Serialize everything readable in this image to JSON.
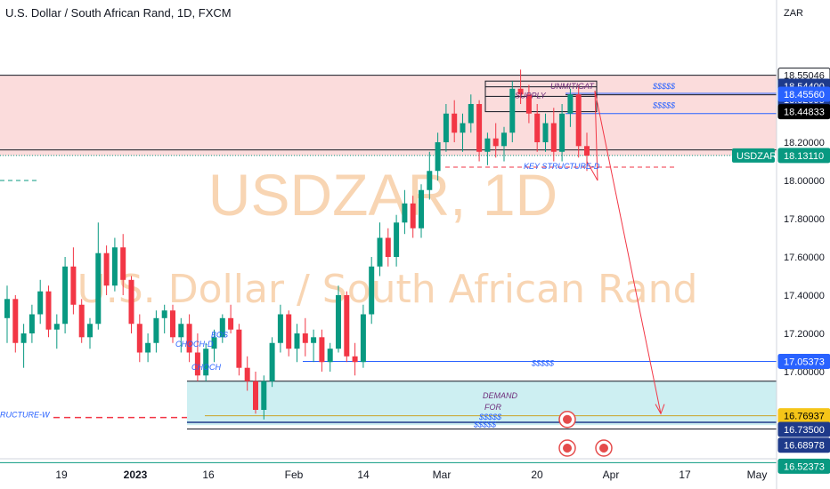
{
  "header": {
    "title": "U.S. Dollar / South African Rand, 1D, FXCM"
  },
  "watermark": {
    "symbol": "USDZAR, 1D",
    "name": "U.S. Dollar / South African Rand"
  },
  "colors": {
    "up": "#089981",
    "down": "#f23645",
    "supply_zone": "#fbdcdc",
    "demand_zone": "#cdeff2",
    "level_line": "#2962ff"
  },
  "chart_data": {
    "type": "candlestick",
    "title": "U.S. Dollar / South African Rand, 1D, FXCM",
    "currency": "ZAR",
    "ylim": [
      16.5,
      18.6
    ],
    "y_ticks": [
      18.2,
      18.0,
      17.8,
      17.6,
      17.4,
      17.2,
      17.0
    ],
    "x_ticks": [
      "19",
      "2023",
      "16",
      "Feb",
      "14",
      "Mar",
      "20",
      "Apr",
      "17",
      "May"
    ],
    "price_labels": [
      {
        "text": "18.55046"
      },
      {
        "text": "18.54400"
      },
      {
        "text": "18.52095"
      },
      {
        "text": "18.45560"
      },
      {
        "text": "18.44833"
      },
      {
        "text": "18.13110"
      },
      {
        "text": "17.05373"
      },
      {
        "text": "16.76937"
      },
      {
        "text": "16.73500"
      },
      {
        "text": "16.68978"
      },
      {
        "text": "16.52373"
      }
    ],
    "last_price": {
      "symbol": "USDZAR",
      "value": "18.13110"
    },
    "annotations": [
      "SUPPLY",
      "UNMITIGAT",
      "$$$$$",
      "$$$$$",
      "KEY STRUCTURE-D",
      "$$$$$",
      "DEMAND",
      "FOR",
      "$$$$$",
      "$$$$$",
      "CHOCH-D",
      "BOS",
      "CHOCH",
      "RUCTURE-W"
    ],
    "candles": [
      [
        17.28,
        17.45,
        17.15,
        17.38
      ],
      [
        17.38,
        17.4,
        17.1,
        17.15
      ],
      [
        17.15,
        17.25,
        17.02,
        17.2
      ],
      [
        17.2,
        17.35,
        17.15,
        17.3
      ],
      [
        17.3,
        17.48,
        17.25,
        17.42
      ],
      [
        17.42,
        17.45,
        17.18,
        17.22
      ],
      [
        17.22,
        17.3,
        17.12,
        17.25
      ],
      [
        17.25,
        17.6,
        17.2,
        17.55
      ],
      [
        17.55,
        17.65,
        17.3,
        17.35
      ],
      [
        17.35,
        17.38,
        17.15,
        17.18
      ],
      [
        17.18,
        17.28,
        17.12,
        17.25
      ],
      [
        17.25,
        17.78,
        17.22,
        17.62
      ],
      [
        17.62,
        17.66,
        17.4,
        17.45
      ],
      [
        17.45,
        17.7,
        17.42,
        17.65
      ],
      [
        17.65,
        17.72,
        17.4,
        17.48
      ],
      [
        17.48,
        17.5,
        17.2,
        17.25
      ],
      [
        17.25,
        17.3,
        17.05,
        17.1
      ],
      [
        17.1,
        17.2,
        17.05,
        17.15
      ],
      [
        17.15,
        17.32,
        17.1,
        17.28
      ],
      [
        17.28,
        17.35,
        17.2,
        17.32
      ],
      [
        17.32,
        17.35,
        17.15,
        17.18
      ],
      [
        17.18,
        17.28,
        17.1,
        17.25
      ],
      [
        17.25,
        17.3,
        17.05,
        17.1
      ],
      [
        17.1,
        17.2,
        16.95,
        16.98
      ],
      [
        16.98,
        17.15,
        16.95,
        17.12
      ],
      [
        17.12,
        17.22,
        17.05,
        17.18
      ],
      [
        17.18,
        17.3,
        17.15,
        17.28
      ],
      [
        17.28,
        17.35,
        17.2,
        17.22
      ],
      [
        17.22,
        17.25,
        16.98,
        17.02
      ],
      [
        17.02,
        17.08,
        16.9,
        16.95
      ],
      [
        16.95,
        17.0,
        16.78,
        16.8
      ],
      [
        16.8,
        16.98,
        16.75,
        16.95
      ],
      [
        16.95,
        17.18,
        16.92,
        17.15
      ],
      [
        17.15,
        17.35,
        17.1,
        17.3
      ],
      [
        17.3,
        17.32,
        17.08,
        17.12
      ],
      [
        17.12,
        17.25,
        17.05,
        17.2
      ],
      [
        17.2,
        17.28,
        17.08,
        17.15
      ],
      [
        17.15,
        17.22,
        17.05,
        17.18
      ],
      [
        17.18,
        17.22,
        17.0,
        17.05
      ],
      [
        17.05,
        17.15,
        17.0,
        17.12
      ],
      [
        17.12,
        17.45,
        17.1,
        17.4
      ],
      [
        17.4,
        17.42,
        17.05,
        17.08
      ],
      [
        17.08,
        17.15,
        16.98,
        17.05
      ],
      [
        17.05,
        17.35,
        17.02,
        17.3
      ],
      [
        17.3,
        17.6,
        17.25,
        17.55
      ],
      [
        17.55,
        17.78,
        17.5,
        17.7
      ],
      [
        17.7,
        17.75,
        17.55,
        17.6
      ],
      [
        17.6,
        17.82,
        17.55,
        17.78
      ],
      [
        17.78,
        17.95,
        17.72,
        17.88
      ],
      [
        17.88,
        17.92,
        17.7,
        17.75
      ],
      [
        17.75,
        17.98,
        17.7,
        17.95
      ],
      [
        17.95,
        18.15,
        17.9,
        18.05
      ],
      [
        18.05,
        18.25,
        18.0,
        18.2
      ],
      [
        18.2,
        18.4,
        18.15,
        18.35
      ],
      [
        18.35,
        18.42,
        18.2,
        18.25
      ],
      [
        18.25,
        18.35,
        18.15,
        18.3
      ],
      [
        18.3,
        18.45,
        18.25,
        18.4
      ],
      [
        18.4,
        18.42,
        18.1,
        18.15
      ],
      [
        18.15,
        18.25,
        18.08,
        18.22
      ],
      [
        18.22,
        18.3,
        18.12,
        18.18
      ],
      [
        18.18,
        18.28,
        18.1,
        18.25
      ],
      [
        18.25,
        18.52,
        18.2,
        18.48
      ],
      [
        18.48,
        18.58,
        18.4,
        18.45
      ],
      [
        18.45,
        18.5,
        18.3,
        18.35
      ],
      [
        18.35,
        18.4,
        18.15,
        18.2
      ],
      [
        18.2,
        18.35,
        18.15,
        18.3
      ],
      [
        18.3,
        18.38,
        18.1,
        18.15
      ],
      [
        18.15,
        18.4,
        18.1,
        18.35
      ],
      [
        18.35,
        18.48,
        18.28,
        18.45
      ],
      [
        18.45,
        18.5,
        18.12,
        18.18
      ],
      [
        18.18,
        18.25,
        18.05,
        18.13
      ]
    ]
  }
}
